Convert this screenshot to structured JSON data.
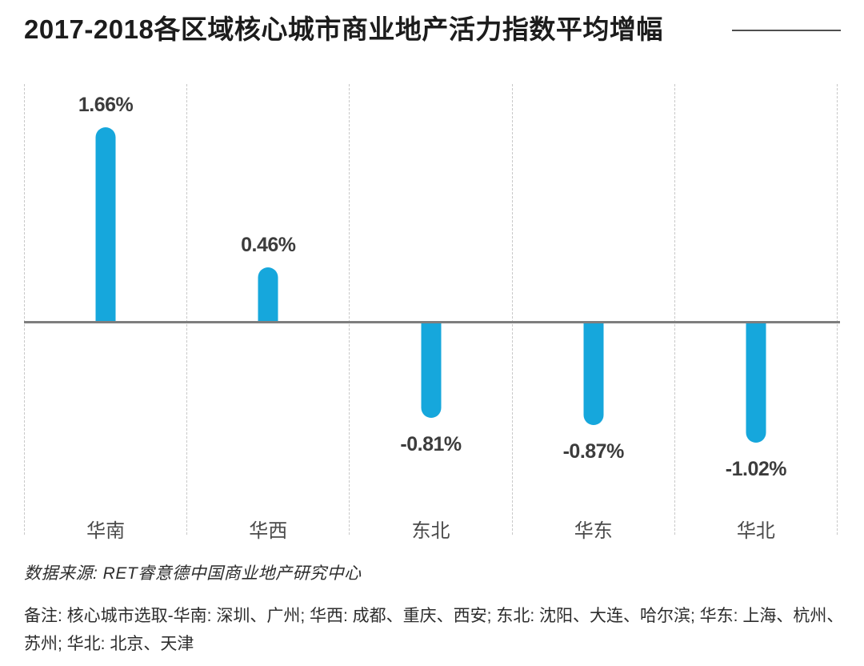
{
  "title": "2017-2018各区域核心城市商业地产活力指数平均增幅",
  "colors": {
    "bar": "#16a7dc",
    "baseline": "#7e7e7e",
    "gridline": "#c8c8c8",
    "title_text": "#1c1c1c",
    "value_label": "#3c3c3c",
    "category_label": "#4b4b4b"
  },
  "chart_data": {
    "type": "bar",
    "title": "2017-2018各区域核心城市商业地产活力指数平均增幅",
    "categories": [
      "华南",
      "华西",
      "东北",
      "华东",
      "华北"
    ],
    "values": [
      1.66,
      0.46,
      -0.81,
      -0.87,
      -1.02
    ],
    "value_labels": [
      "1.66%",
      "0.46%",
      "-0.81%",
      "-0.87%",
      "-1.02%"
    ],
    "unit": "%",
    "xlabel": "",
    "ylabel": "",
    "ylim": [
      -1.2,
      2.05
    ],
    "baseline": 0,
    "grid": "vertical dashed column separators",
    "legend_position": "none"
  },
  "footer": {
    "source": "数据来源: RET睿意德中国商业地产研究中心",
    "note": "备注: 核心城市选取-华南: 深圳、广州; 华西: 成都、重庆、西安; 东北: 沈阳、大连、哈尔滨; 华东: 上海、杭州、苏州; 华北: 北京、天津"
  }
}
